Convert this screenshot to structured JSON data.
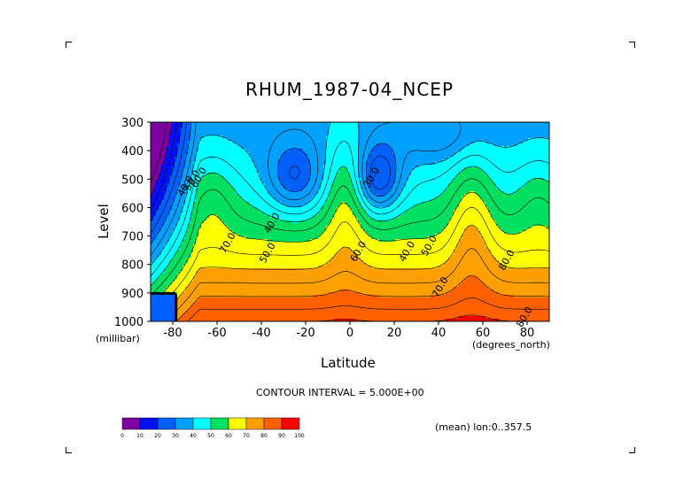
{
  "chart_data": {
    "type": "contour",
    "title": "RHUM_1987-04_NCEP",
    "xlabel": "Latitude",
    "ylabel": "Level",
    "x_unit": "(degrees_north)",
    "y_unit": "(millibar)",
    "xlim": [
      -90,
      90
    ],
    "ylim": [
      1000,
      300
    ],
    "x_ticks": [
      "-80",
      "-60",
      "-40",
      "-20",
      "0",
      "20",
      "40",
      "60",
      "80"
    ],
    "x_tick_values": [
      -80,
      -60,
      -40,
      -20,
      0,
      20,
      40,
      60,
      80
    ],
    "y_ticks": [
      "300",
      "400",
      "500",
      "600",
      "700",
      "800",
      "900",
      "1000"
    ],
    "y_tick_values": [
      300,
      400,
      500,
      600,
      700,
      800,
      900,
      1000
    ],
    "contour_interval_text": "CONTOUR INTERVAL = 5.000E+00",
    "subset_text": "(mean) lon:0..357.5",
    "contour_labels": [
      {
        "text": "30.0",
        "lat": 11,
        "level": 500
      },
      {
        "text": "40.0",
        "lat": -34,
        "level": 660
      },
      {
        "text": "40.0",
        "lat": 27,
        "level": 760
      },
      {
        "text": "50.0",
        "lat": -36,
        "level": 765
      },
      {
        "text": "50.0",
        "lat": 37,
        "level": 740
      },
      {
        "text": "60.0",
        "lat": 5,
        "level": 760
      },
      {
        "text": "70.0",
        "lat": -54,
        "level": 730
      },
      {
        "text": "70.0",
        "lat": 42,
        "level": 885
      },
      {
        "text": "80.0",
        "lat": 72,
        "level": 790
      },
      {
        "text": "80.0",
        "lat": 80,
        "level": 990
      },
      {
        "text": "40.0",
        "lat": -73,
        "level": 530
      },
      {
        "text": "50.0",
        "lat": -70,
        "level": 510
      },
      {
        "text": "60.0",
        "lat": -67,
        "level": 500
      }
    ],
    "colorbar": {
      "levels": [
        0,
        10,
        20,
        30,
        40,
        50,
        60,
        70,
        80,
        90,
        100
      ],
      "labels": [
        "0",
        "10",
        "20",
        "30",
        "40",
        "50",
        "60",
        "70",
        "80",
        "90",
        "100"
      ],
      "colors": [
        "#7f00a0",
        "#0010ff",
        "#0060ff",
        "#00a0ff",
        "#00ffff",
        "#00e060",
        "#ffff00",
        "#ffa000",
        "#ff6000",
        "#ff0000"
      ]
    },
    "grid": false
  }
}
